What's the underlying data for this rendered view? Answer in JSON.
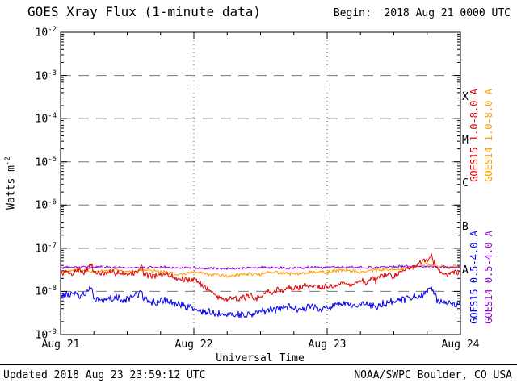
{
  "title": "GOES Xray Flux (1-minute data)",
  "begin_label": "Begin:  2018 Aug 21 0000 UTC",
  "footer": {
    "updated": "Updated 2018 Aug 23 23:59:12 UTC",
    "source": "NOAA/SWPC Boulder, CO USA"
  },
  "axes": {
    "ylabel_base": "Watts m",
    "ylabel_exp": "-2",
    "xlabel": "Universal Time",
    "x_tick_labels": [
      "Aug 21",
      "Aug 22",
      "Aug 23",
      "Aug 24"
    ],
    "y_ticks": [
      {
        "base": "10",
        "exp": "-2"
      },
      {
        "base": "10",
        "exp": "-3"
      },
      {
        "base": "10",
        "exp": "-4"
      },
      {
        "base": "10",
        "exp": "-5"
      },
      {
        "base": "10",
        "exp": "-6"
      },
      {
        "base": "10",
        "exp": "-7"
      },
      {
        "base": "10",
        "exp": "-8"
      },
      {
        "base": "10",
        "exp": "-9"
      }
    ]
  },
  "flare_classes": [
    {
      "label": "X",
      "log_center": -3.5
    },
    {
      "label": "M",
      "log_center": -4.5
    },
    {
      "label": "C",
      "log_center": -5.5
    },
    {
      "label": "B",
      "log_center": -6.5
    },
    {
      "label": "A",
      "log_center": -7.5
    }
  ],
  "right_labels": [
    {
      "text": "GOES15 1.0-8.0 A",
      "color": "#e00000",
      "column": 0,
      "half": "top"
    },
    {
      "text": "GOES14 1.0-8.0 A",
      "color": "#ff9900",
      "column": 1,
      "half": "top"
    },
    {
      "text": "GOES15 0.5-4.0 A",
      "color": "#0000ee",
      "column": 0,
      "half": "bottom"
    },
    {
      "text": "GOES14 0.5-4.0 A",
      "color": "#9400d3",
      "column": 1,
      "half": "bottom"
    }
  ],
  "chart_data": {
    "type": "line",
    "title": "GOES Xray Flux (1-minute data)",
    "xlabel": "Universal Time",
    "ylabel": "Watts m^-2",
    "x_unit": "hours since 2018 Aug 21 0000 UTC",
    "x_range": [
      0,
      72
    ],
    "y_scale": "log10",
    "y_range_exponents": [
      -9,
      -2
    ],
    "grid": {
      "h_decades": [
        -3,
        -4,
        -5,
        -6,
        -7,
        -8
      ],
      "v_hours": [
        24,
        48
      ]
    },
    "series": [
      {
        "id": "goes14-long",
        "name": "GOES14 1.0-8.0 A",
        "color": "#ff9900",
        "noise": 0.05,
        "seed": 29,
        "points": [
          [
            0,
            -7.55
          ],
          [
            3,
            -7.5
          ],
          [
            6,
            -7.55
          ],
          [
            9,
            -7.5
          ],
          [
            12,
            -7.55
          ],
          [
            15,
            -7.5
          ],
          [
            18,
            -7.55
          ],
          [
            21,
            -7.6
          ],
          [
            24,
            -7.55
          ],
          [
            27,
            -7.6
          ],
          [
            30,
            -7.65
          ],
          [
            33,
            -7.6
          ],
          [
            36,
            -7.6
          ],
          [
            39,
            -7.55
          ],
          [
            42,
            -7.6
          ],
          [
            45,
            -7.55
          ],
          [
            48,
            -7.55
          ],
          [
            51,
            -7.5
          ],
          [
            54,
            -7.55
          ],
          [
            57,
            -7.5
          ],
          [
            60,
            -7.5
          ],
          [
            63,
            -7.45
          ],
          [
            65,
            -7.4
          ],
          [
            66,
            -7.35
          ],
          [
            67,
            -7.4
          ],
          [
            68,
            -7.45
          ],
          [
            69,
            -7.4
          ],
          [
            70,
            -7.45
          ],
          [
            71,
            -7.4
          ],
          [
            72,
            -7.45
          ]
        ]
      },
      {
        "id": "goes14-short",
        "name": "GOES14 0.5-4.0 A",
        "color": "#9400d3",
        "noise": 0.035,
        "seed": 41,
        "points": [
          [
            0,
            -7.45
          ],
          [
            6,
            -7.43
          ],
          [
            12,
            -7.45
          ],
          [
            18,
            -7.44
          ],
          [
            24,
            -7.46
          ],
          [
            30,
            -7.47
          ],
          [
            36,
            -7.45
          ],
          [
            42,
            -7.46
          ],
          [
            48,
            -7.44
          ],
          [
            54,
            -7.45
          ],
          [
            60,
            -7.43
          ],
          [
            66,
            -7.42
          ],
          [
            72,
            -7.44
          ]
        ]
      },
      {
        "id": "goes15-short",
        "name": "GOES15 0.5-4.0 A",
        "color": "#0000ee",
        "noise": 0.11,
        "seed": 13,
        "points": [
          [
            0,
            -8.1
          ],
          [
            2,
            -8.05
          ],
          [
            4,
            -8.1
          ],
          [
            5.5,
            -7.95
          ],
          [
            6,
            -8.15
          ],
          [
            8,
            -8.2
          ],
          [
            10,
            -8.15
          ],
          [
            12,
            -8.2
          ],
          [
            14.5,
            -8.0
          ],
          [
            15,
            -8.2
          ],
          [
            17,
            -8.25
          ],
          [
            19,
            -8.2
          ],
          [
            21,
            -8.3
          ],
          [
            23,
            -8.35
          ],
          [
            25,
            -8.45
          ],
          [
            27,
            -8.5
          ],
          [
            29,
            -8.55
          ],
          [
            31,
            -8.5
          ],
          [
            33,
            -8.55
          ],
          [
            35,
            -8.5
          ],
          [
            37,
            -8.45
          ],
          [
            39,
            -8.4
          ],
          [
            41,
            -8.35
          ],
          [
            43,
            -8.4
          ],
          [
            45,
            -8.35
          ],
          [
            47,
            -8.4
          ],
          [
            49,
            -8.35
          ],
          [
            51,
            -8.3
          ],
          [
            53,
            -8.35
          ],
          [
            55,
            -8.3
          ],
          [
            57,
            -8.35
          ],
          [
            59,
            -8.25
          ],
          [
            61,
            -8.2
          ],
          [
            63,
            -8.15
          ],
          [
            65,
            -8.1
          ],
          [
            66.8,
            -7.95
          ],
          [
            67.5,
            -8.1
          ],
          [
            68,
            -8.25
          ],
          [
            69,
            -8.3
          ],
          [
            70,
            -8.25
          ],
          [
            71,
            -8.3
          ],
          [
            72,
            -8.25
          ]
        ]
      },
      {
        "id": "goes15-long",
        "name": "GOES15 1.0-8.0 A",
        "color": "#e00000",
        "noise": 0.09,
        "seed": 7,
        "points": [
          [
            0,
            -7.6
          ],
          [
            1,
            -7.55
          ],
          [
            2,
            -7.6
          ],
          [
            3,
            -7.5
          ],
          [
            4,
            -7.55
          ],
          [
            5,
            -7.5
          ],
          [
            5.5,
            -7.35
          ],
          [
            6,
            -7.55
          ],
          [
            8,
            -7.6
          ],
          [
            10,
            -7.55
          ],
          [
            12,
            -7.6
          ],
          [
            14,
            -7.55
          ],
          [
            14.5,
            -7.35
          ],
          [
            15,
            -7.6
          ],
          [
            17,
            -7.65
          ],
          [
            19,
            -7.6
          ],
          [
            21,
            -7.7
          ],
          [
            23,
            -7.75
          ],
          [
            24,
            -7.7
          ],
          [
            25,
            -7.8
          ],
          [
            26,
            -7.9
          ],
          [
            27,
            -8.0
          ],
          [
            28,
            -8.1
          ],
          [
            29,
            -8.15
          ],
          [
            30,
            -8.2
          ],
          [
            31,
            -8.1
          ],
          [
            32,
            -8.2
          ],
          [
            33,
            -8.15
          ],
          [
            34,
            -8.1
          ],
          [
            35,
            -8.2
          ],
          [
            36,
            -8.1
          ],
          [
            37,
            -8.0
          ],
          [
            38,
            -8.05
          ],
          [
            39,
            -7.95
          ],
          [
            40,
            -8.0
          ],
          [
            41,
            -7.9
          ],
          [
            42,
            -7.95
          ],
          [
            43,
            -7.9
          ],
          [
            44,
            -7.85
          ],
          [
            45,
            -7.9
          ],
          [
            46,
            -7.85
          ],
          [
            47,
            -7.9
          ],
          [
            48,
            -7.85
          ],
          [
            49,
            -7.9
          ],
          [
            50,
            -7.85
          ],
          [
            51,
            -7.8
          ],
          [
            52,
            -7.85
          ],
          [
            53,
            -7.8
          ],
          [
            54,
            -7.75
          ],
          [
            55,
            -7.8
          ],
          [
            56,
            -7.7
          ],
          [
            57,
            -7.75
          ],
          [
            58,
            -7.65
          ],
          [
            59,
            -7.6
          ],
          [
            60,
            -7.65
          ],
          [
            61,
            -7.55
          ],
          [
            62,
            -7.5
          ],
          [
            63,
            -7.45
          ],
          [
            64,
            -7.4
          ],
          [
            65,
            -7.3
          ],
          [
            66,
            -7.25
          ],
          [
            66.8,
            -7.15
          ],
          [
            67.2,
            -7.3
          ],
          [
            68,
            -7.5
          ],
          [
            69,
            -7.6
          ],
          [
            70,
            -7.6
          ],
          [
            71,
            -7.55
          ],
          [
            72,
            -7.55
          ]
        ]
      }
    ]
  }
}
